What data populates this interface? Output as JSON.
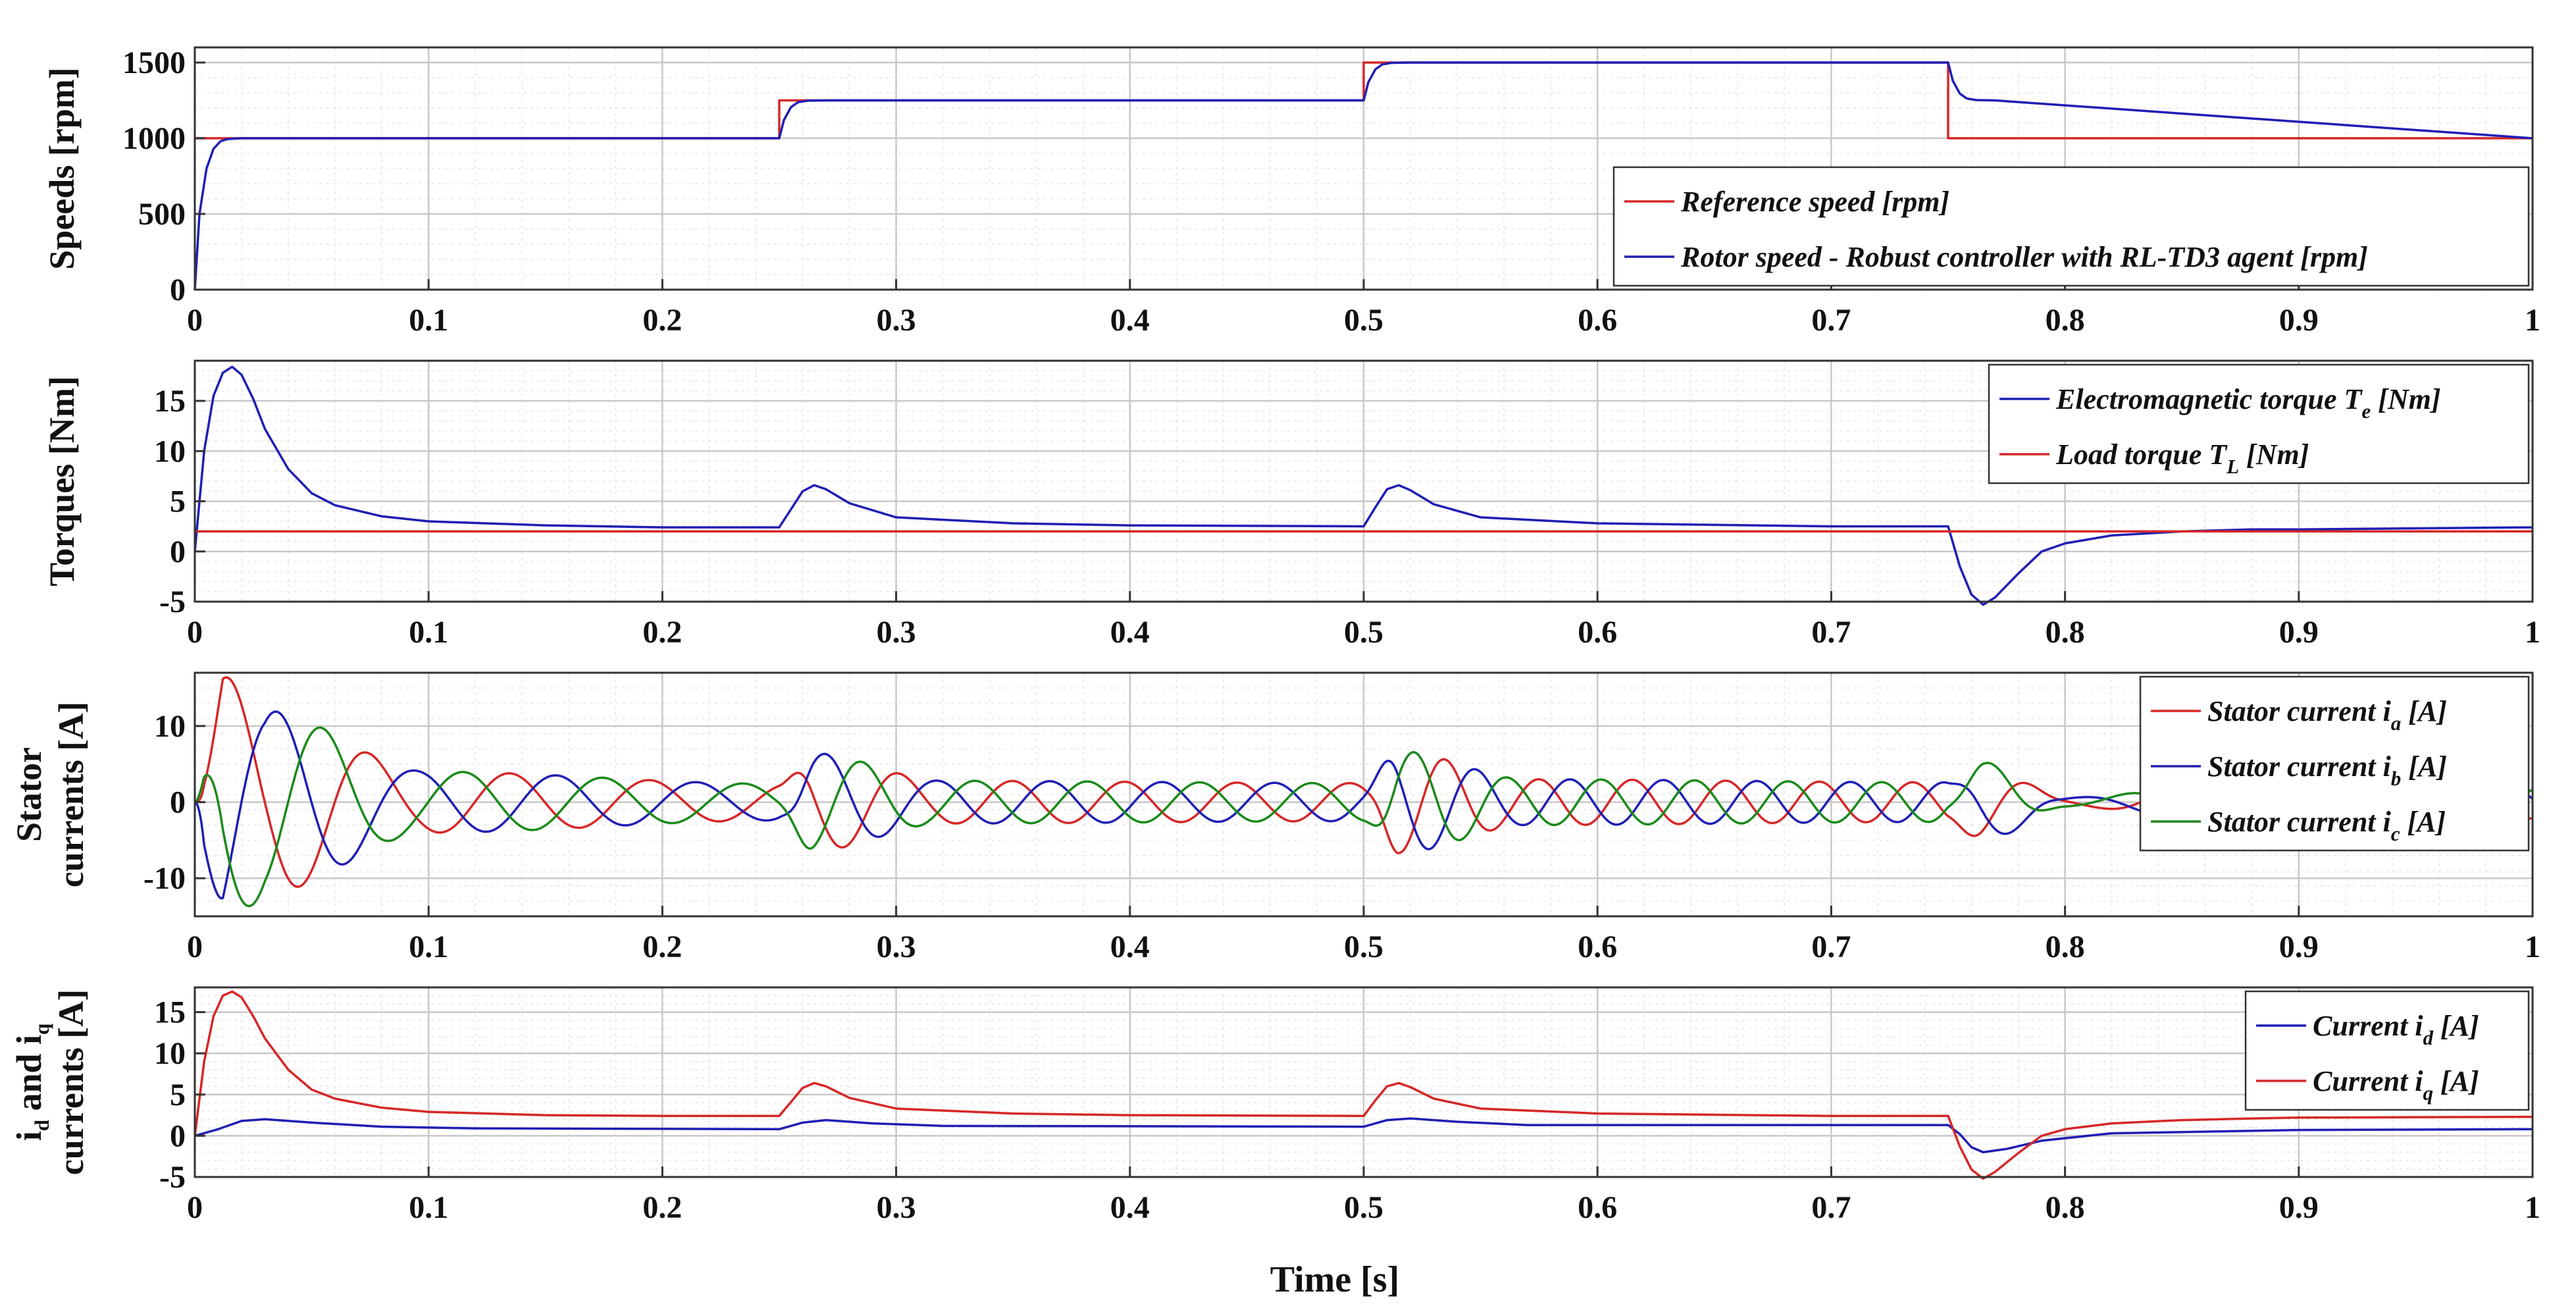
{
  "figure": {
    "xlabel": "Time [s]",
    "xlim": [
      0,
      1
    ],
    "xticks": [
      0,
      0.1,
      0.2,
      0.3,
      0.4,
      0.5,
      0.6,
      0.7,
      0.8,
      0.9,
      1
    ],
    "xtick_labels": [
      "0",
      "0.1",
      "0.2",
      "0.3",
      "0.4",
      "0.5",
      "0.6",
      "0.7",
      "0.8",
      "0.9",
      "1"
    ]
  },
  "colors": {
    "red": "#d62728",
    "blue": "#1f1fb4",
    "green": "#1a8a1a",
    "grid": "#c8c8c8",
    "minor": "#e6e6e6"
  },
  "chart_data": [
    {
      "type": "line",
      "id": "speeds",
      "ylabel": [
        "Speeds [rpm]"
      ],
      "ylim": [
        0,
        1600
      ],
      "yticks": [
        0,
        500,
        1000,
        1500
      ],
      "ytick_labels": [
        "0",
        "500",
        "1000",
        "1500"
      ],
      "legend_position": "bottom-right",
      "series": [
        {
          "name": "Reference speed [rpm]",
          "color": "red",
          "x": [
            0,
            0.25,
            0.25,
            0.5,
            0.5,
            0.75,
            0.75,
            1
          ],
          "y": [
            1000,
            1000,
            1250,
            1250,
            1500,
            1500,
            1000,
            1000
          ]
        },
        {
          "name": "Rotor speed - Robust controller with RL-TD3 agent [rpm]",
          "color": "blue",
          "x": [
            0,
            0.002,
            0.005,
            0.008,
            0.011,
            0.014,
            0.02,
            0.25,
            0.252,
            0.255,
            0.258,
            0.262,
            0.27,
            0.5,
            0.502,
            0.505,
            0.508,
            0.512,
            0.52,
            0.75,
            0.752,
            0.755,
            0.758,
            0.762,
            0.77,
            1
          ],
          "y": [
            0,
            500,
            800,
            930,
            980,
            995,
            1000,
            1000,
            1120,
            1205,
            1238,
            1248,
            1250,
            1250,
            1370,
            1455,
            1488,
            1498,
            1500,
            1500,
            1380,
            1295,
            1262,
            1252,
            1250,
            1000
          ]
        }
      ]
    },
    {
      "type": "line",
      "id": "torques",
      "ylabel": [
        "Torques [Nm]"
      ],
      "ylim": [
        -5,
        19
      ],
      "yticks": [
        -5,
        0,
        5,
        10,
        15
      ],
      "ytick_labels": [
        "-5",
        "0",
        "5",
        "10",
        "15"
      ],
      "legend_position": "top-right",
      "series": [
        {
          "name": "Electromagnetic torque",
          "sub": "e",
          "unit": "[Nm]",
          "symbol": "T",
          "color": "blue",
          "x": [
            0,
            0.004,
            0.008,
            0.012,
            0.016,
            0.02,
            0.025,
            0.03,
            0.04,
            0.05,
            0.06,
            0.08,
            0.1,
            0.15,
            0.2,
            0.25,
            0.255,
            0.26,
            0.265,
            0.27,
            0.28,
            0.3,
            0.35,
            0.4,
            0.5,
            0.505,
            0.51,
            0.515,
            0.52,
            0.53,
            0.55,
            0.6,
            0.7,
            0.75,
            0.755,
            0.76,
            0.765,
            0.77,
            0.78,
            0.79,
            0.8,
            0.82,
            0.85,
            0.88,
            0.9,
            1
          ],
          "y": [
            0,
            10,
            15.5,
            17.8,
            18.4,
            17.6,
            15.2,
            12.2,
            8.2,
            5.8,
            4.6,
            3.5,
            3.0,
            2.6,
            2.4,
            2.4,
            4.2,
            6.0,
            6.6,
            6.2,
            4.8,
            3.4,
            2.8,
            2.6,
            2.5,
            4.4,
            6.2,
            6.6,
            6.1,
            4.7,
            3.4,
            2.8,
            2.5,
            2.5,
            -1.5,
            -4.3,
            -5.3,
            -4.6,
            -2.2,
            0,
            0.8,
            1.6,
            2.0,
            2.2,
            2.2,
            2.4
          ]
        },
        {
          "name": "Load torque",
          "sub": "L",
          "unit": "[Nm]",
          "symbol": "T",
          "color": "red",
          "x": [
            0,
            1
          ],
          "y": [
            2,
            2
          ]
        }
      ]
    },
    {
      "type": "line",
      "id": "stator",
      "ylabel": [
        "Stator",
        "currents [A]"
      ],
      "ylim": [
        -15,
        17
      ],
      "yticks": [
        -10,
        0,
        10
      ],
      "ytick_labels": [
        "-10",
        "0",
        "10"
      ],
      "legend_position": "top-right",
      "series": [
        {
          "name": "Stator current",
          "symbol": "i",
          "sub": "a",
          "unit": "[A]",
          "color": "red",
          "generator": "three-phase",
          "phase_deg": 0
        },
        {
          "name": "Stator current",
          "symbol": "i",
          "sub": "b",
          "unit": "[A]",
          "color": "blue",
          "generator": "three-phase",
          "phase_deg": -120
        },
        {
          "name": "Stator current",
          "symbol": "i",
          "sub": "c",
          "unit": "[A]",
          "color": "green",
          "generator": "three-phase",
          "phase_deg": 120
        }
      ]
    },
    {
      "type": "line",
      "id": "dq",
      "ylabel": [
        "i_d and i_q",
        "currents [A]"
      ],
      "ylabel_parts": [
        "i",
        "d",
        " and i",
        "q",
        "currents [A]"
      ],
      "ylim": [
        -5,
        18
      ],
      "yticks": [
        -5,
        0,
        5,
        10,
        15
      ],
      "ytick_labels": [
        "-5",
        "0",
        "5",
        "10",
        "15"
      ],
      "legend_position": "top-right",
      "series": [
        {
          "name": "Current",
          "symbol": "i",
          "sub": "d",
          "unit": "[A]",
          "color": "blue",
          "x": [
            0,
            0.01,
            0.02,
            0.03,
            0.05,
            0.08,
            0.12,
            0.25,
            0.26,
            0.27,
            0.29,
            0.32,
            0.5,
            0.51,
            0.52,
            0.54,
            0.57,
            0.75,
            0.755,
            0.76,
            0.765,
            0.775,
            0.79,
            0.82,
            0.9,
            1
          ],
          "y": [
            0,
            0.8,
            1.8,
            2.0,
            1.6,
            1.1,
            0.9,
            0.8,
            1.6,
            1.9,
            1.5,
            1.2,
            1.1,
            1.9,
            2.1,
            1.7,
            1.3,
            1.3,
            0.2,
            -1.4,
            -2.0,
            -1.6,
            -0.6,
            0.3,
            0.7,
            0.8
          ]
        },
        {
          "name": "Current",
          "symbol": "i",
          "sub": "q",
          "unit": "[A]",
          "color": "red",
          "x": [
            0,
            0.004,
            0.008,
            0.012,
            0.016,
            0.02,
            0.025,
            0.03,
            0.04,
            0.05,
            0.06,
            0.08,
            0.1,
            0.15,
            0.2,
            0.25,
            0.255,
            0.26,
            0.265,
            0.27,
            0.28,
            0.3,
            0.35,
            0.4,
            0.5,
            0.505,
            0.51,
            0.515,
            0.52,
            0.53,
            0.55,
            0.6,
            0.7,
            0.75,
            0.755,
            0.76,
            0.765,
            0.77,
            0.78,
            0.79,
            0.8,
            0.82,
            0.85,
            0.88,
            0.9,
            1
          ],
          "y": [
            0,
            9,
            14.5,
            17.0,
            17.5,
            16.8,
            14.5,
            11.8,
            8.0,
            5.6,
            4.5,
            3.4,
            2.9,
            2.5,
            2.4,
            2.4,
            4.1,
            5.8,
            6.4,
            6.0,
            4.6,
            3.3,
            2.7,
            2.5,
            2.4,
            4.3,
            6.0,
            6.4,
            5.9,
            4.5,
            3.3,
            2.7,
            2.4,
            2.4,
            -1.3,
            -4.1,
            -5.2,
            -4.4,
            -2.1,
            0,
            0.8,
            1.5,
            1.9,
            2.1,
            2.2,
            2.3
          ]
        }
      ]
    }
  ]
}
